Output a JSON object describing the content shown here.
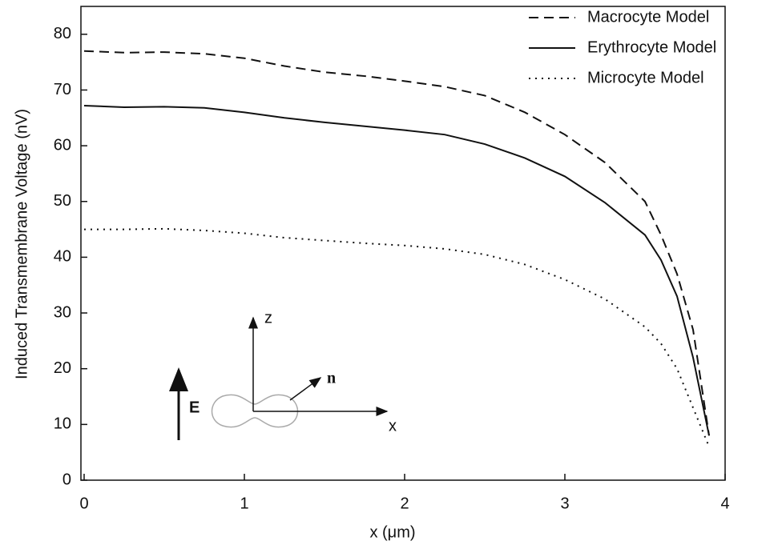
{
  "chart_data": {
    "type": "line",
    "x_label": "x (μm)",
    "y_label": "Induced Transmembrane Voltage (nV)",
    "x": [
      0,
      0.25,
      0.5,
      0.75,
      1,
      1.25,
      1.5,
      1.75,
      2,
      2.25,
      2.5,
      2.75,
      3,
      3.25,
      3.5,
      3.6,
      3.7,
      3.8,
      3.9
    ],
    "series": [
      {
        "name": "Macrocyte Model",
        "color": "#111111",
        "dash": "dashed",
        "values": [
          77,
          76.7,
          76.8,
          76.5,
          75.7,
          74.3,
          73.2,
          72.5,
          71.6,
          70.6,
          69,
          66,
          62,
          57,
          50,
          44,
          37,
          27,
          8
        ]
      },
      {
        "name": "Erythrocyte Model",
        "color": "#111111",
        "dash": "solid",
        "values": [
          67.2,
          66.9,
          67,
          66.8,
          66,
          65,
          64.2,
          63.5,
          62.8,
          62,
          60.3,
          57.8,
          54.5,
          49.8,
          44,
          39.5,
          33,
          22,
          8
        ]
      },
      {
        "name": "Microcyte Model",
        "color": "#111111",
        "dash": "dotted",
        "values": [
          45,
          45,
          45.1,
          44.8,
          44.3,
          43.5,
          43,
          42.5,
          42.1,
          41.5,
          40.5,
          38.7,
          36,
          32.5,
          27.5,
          24.5,
          20,
          13,
          6
        ]
      }
    ],
    "xlim": [
      -0.02,
      4
    ],
    "xticks": [
      0,
      1,
      2,
      3,
      4
    ],
    "ylim": [
      0,
      85
    ],
    "yticks": [
      0,
      10,
      20,
      30,
      40,
      50,
      60,
      70,
      80
    ],
    "legend": "top-right",
    "annotations": [
      "E",
      "z",
      "x",
      "n"
    ]
  }
}
